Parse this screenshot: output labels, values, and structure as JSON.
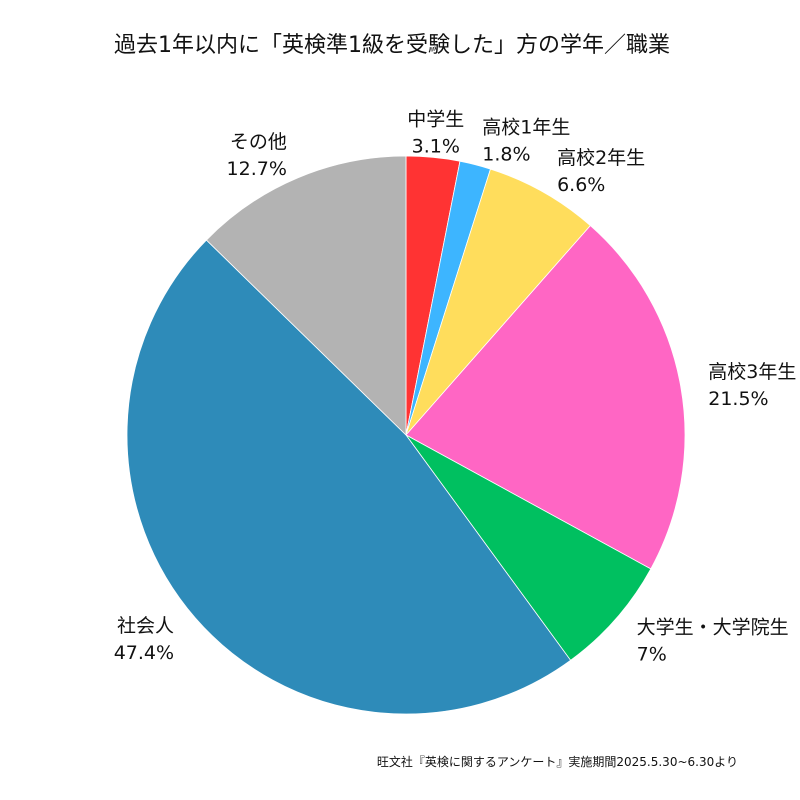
{
  "chart_data": {
    "type": "pie",
    "title": "過去1年以内に「英検準1級を受験した」方の学年／職業",
    "source_note": "旺文社『英検に関するアンケート』実施期間2025.5.30~6.30より",
    "start": "top",
    "direction": "clockwise",
    "legend": "none",
    "slices": [
      {
        "name": "中学生",
        "value": 3.1,
        "value_label": "3.1%",
        "color": "#FF3333"
      },
      {
        "name": "高校1年生",
        "value": 1.8,
        "value_label": "1.8%",
        "color": "#3DB5FF"
      },
      {
        "name": "高校2年生",
        "value": 6.6,
        "value_label": "6.6%",
        "color": "#FFDD5C"
      },
      {
        "name": "高校3年生",
        "value": 21.5,
        "value_label": "21.5%",
        "color": "#FF66C4"
      },
      {
        "name": "大学生・大学院生",
        "value": 7,
        "value_label": "7%",
        "color": "#00C060"
      },
      {
        "name": "社会人",
        "value": 47.4,
        "value_label": "47.4%",
        "color": "#2E8BB9"
      },
      {
        "name": "その他",
        "value": 12.7,
        "value_label": "12.7%",
        "color": "#B3B3B3"
      }
    ]
  }
}
